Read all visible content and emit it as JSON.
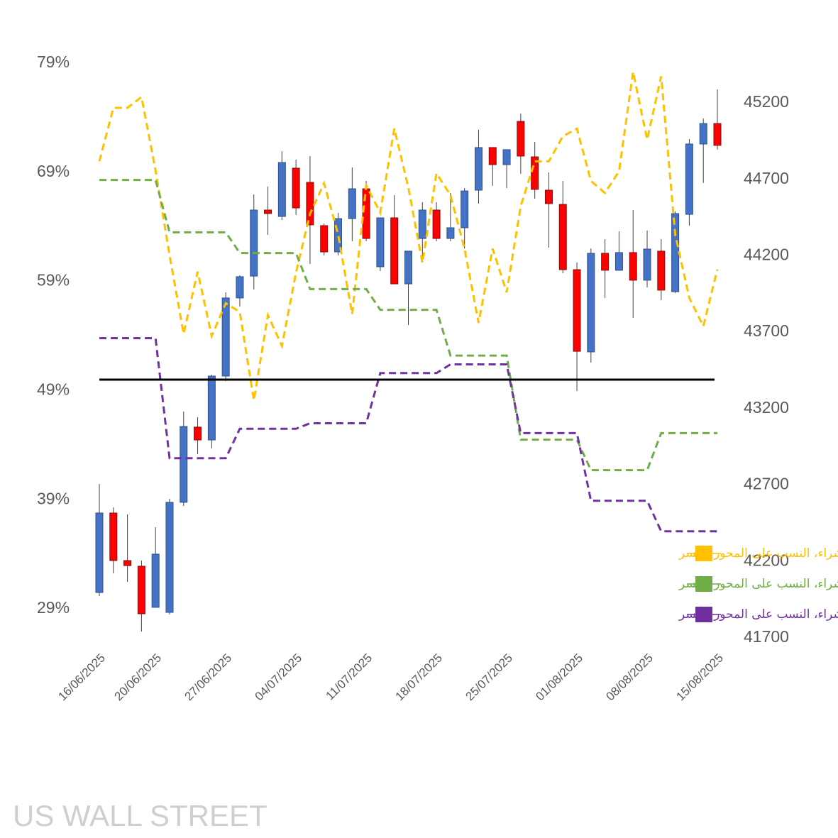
{
  "chart_data": {
    "type": "candlestick",
    "categories": [
      "16/06/2025",
      null,
      null,
      null,
      "20/06/2025",
      null,
      null,
      null,
      null,
      "27/06/2025",
      null,
      null,
      null,
      null,
      "04/07/2025",
      null,
      null,
      null,
      null,
      "11/07/2025",
      null,
      null,
      null,
      null,
      "18/07/2025",
      null,
      null,
      null,
      null,
      "25/07/2025",
      null,
      null,
      null,
      null,
      "01/08/2025",
      null,
      null,
      null,
      null,
      "08/08/2025",
      null,
      null,
      null,
      null,
      "15/08/2025"
    ],
    "candles": {
      "axis": "y2",
      "up_color": "#4472c4",
      "down_color": "#ff0000",
      "open": [
        41997,
        42517,
        42206,
        42169,
        41900,
        41867,
        42587,
        43079,
        42995,
        43413,
        43924,
        44067,
        44499,
        44457,
        44773,
        44680,
        44397,
        44225,
        44443,
        44638,
        44128,
        44448,
        44016,
        44313,
        44499,
        44313,
        44383,
        44629,
        44908,
        44796,
        45079,
        44847,
        44629,
        44536,
        44109,
        43571,
        44216,
        44105,
        44221,
        44040,
        44230,
        43965,
        44471,
        44931,
        45065
      ],
      "high": [
        42707,
        42554,
        42508,
        42206,
        42424,
        42610,
        43181,
        43144,
        43422,
        43961,
        44072,
        44601,
        44652,
        44884,
        44829,
        44852,
        44411,
        44481,
        44778,
        44689,
        44448,
        44597,
        44230,
        44550,
        44550,
        44611,
        44643,
        45024,
        44908,
        44894,
        45130,
        44945,
        44745,
        44689,
        44156,
        44248,
        44309,
        44360,
        44499,
        44365,
        44309,
        44490,
        44963,
        45098,
        45288
      ],
      "low": [
        41974,
        42122,
        42067,
        41742,
        41900,
        41853,
        42563,
        42902,
        42939,
        43380,
        43868,
        43979,
        44337,
        44434,
        44467,
        44146,
        44202,
        44202,
        44295,
        44295,
        44100,
        44016,
        43747,
        44156,
        44295,
        44295,
        44248,
        44541,
        44657,
        44643,
        44736,
        44573,
        44253,
        44086,
        43315,
        43501,
        43924,
        44105,
        43794,
        43993,
        43910,
        43956,
        44397,
        44676,
        44894
      ],
      "close": [
        42517,
        42206,
        42173,
        41858,
        42248,
        42587,
        43083,
        42995,
        43413,
        43924,
        44063,
        44499,
        44476,
        44810,
        44513,
        44402,
        44225,
        44443,
        44638,
        44313,
        44448,
        44016,
        44230,
        44499,
        44313,
        44383,
        44624,
        44908,
        44796,
        44894,
        44852,
        44634,
        44541,
        44109,
        43575,
        44216,
        44105,
        44221,
        44040,
        44244,
        43975,
        44476,
        44931,
        45065,
        44922
      ]
    },
    "series": [
      {
        "name": "توجه عملاء، نسبة الشراء، النسب على المحور الأيسر",
        "color": "#ffc000",
        "axis": "y",
        "values": [
          70.0,
          74.9,
          74.9,
          75.9,
          69.2,
          61.4,
          54.2,
          59.9,
          54.0,
          57.0,
          56.2,
          48.1,
          55.9,
          53.1,
          59.8,
          65.2,
          68.0,
          63.3,
          56.0,
          67.8,
          65.3,
          73.0,
          67.6,
          60.7,
          68.9,
          66.9,
          62.0,
          55.2,
          62.0,
          58.0,
          65.9,
          70.0,
          70.0,
          72.3,
          73.0,
          68.2,
          67.1,
          69.1,
          78.2,
          72.0,
          77.8,
          63.3,
          57.5,
          54.9,
          60.1
        ]
      },
      {
        "name": "توجه المؤسسات، نسبة الشراء، النسب على المحور الأيسر",
        "color": "#70ad47",
        "axis": "y",
        "values": [
          68.3,
          68.3,
          68.3,
          68.3,
          68.3,
          63.5,
          63.5,
          63.5,
          63.5,
          63.5,
          61.6,
          61.6,
          61.6,
          61.6,
          61.6,
          58.3,
          58.3,
          58.3,
          58.3,
          58.3,
          56.4,
          56.4,
          56.4,
          56.4,
          56.4,
          52.2,
          52.2,
          52.2,
          52.2,
          52.2,
          44.5,
          44.5,
          44.5,
          44.5,
          44.5,
          41.7,
          41.7,
          41.7,
          41.7,
          41.7,
          45.1,
          45.1,
          45.1,
          45.1,
          45.1
        ]
      },
      {
        "name": "توجه صناديق الرفع المالي، نسبة الشراء، النسب على المحور الأيسر",
        "color": "#7030a0",
        "axis": "y",
        "values": [
          53.8,
          53.8,
          53.8,
          53.8,
          53.8,
          42.8,
          42.8,
          42.8,
          42.8,
          42.8,
          45.5,
          45.5,
          45.5,
          45.5,
          45.5,
          46.0,
          46.0,
          46.0,
          46.0,
          46.0,
          50.6,
          50.6,
          50.6,
          50.6,
          50.6,
          51.4,
          51.4,
          51.4,
          51.4,
          51.4,
          45.1,
          45.1,
          45.1,
          45.1,
          45.1,
          38.9,
          38.9,
          38.9,
          38.9,
          38.9,
          36.1,
          36.1,
          36.1,
          36.1,
          36.1
        ]
      }
    ],
    "reference_line": {
      "value": 50,
      "color": "#000000"
    },
    "ylim": [
      29,
      79
    ],
    "yticks": [
      {
        "value": 29,
        "label": "29%"
      },
      {
        "value": 39,
        "label": "39%"
      },
      {
        "value": 49,
        "label": "49%"
      },
      {
        "value": 59,
        "label": "59%"
      },
      {
        "value": 69,
        "label": "69%"
      },
      {
        "value": 79,
        "label": "79%"
      }
    ],
    "y2lim": [
      41700,
      45200
    ],
    "y2ticks": [
      41700,
      42200,
      42700,
      43200,
      43700,
      44200,
      44700,
      45200
    ],
    "grid": false,
    "legend": "bottom-right",
    "watermark": "US WALL STREET"
  }
}
